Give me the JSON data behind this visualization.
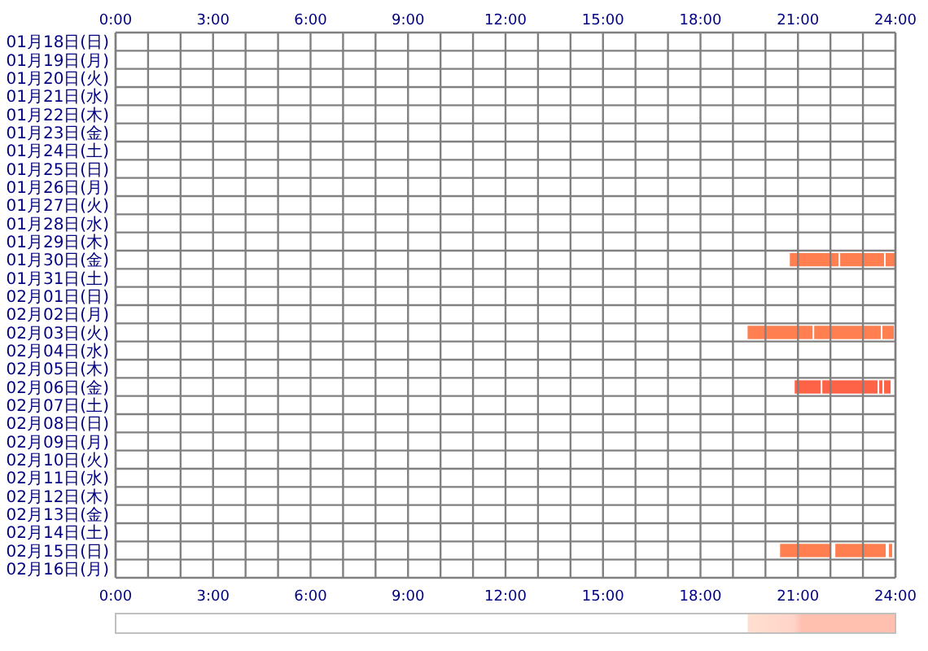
{
  "chart_data": {
    "type": "bar",
    "orientation": "horizontal",
    "grid": true,
    "categories": [
      "01月18日(日)",
      "01月19日(月)",
      "01月20日(火)",
      "01月21日(水)",
      "01月22日(木)",
      "01月23日(金)",
      "01月24日(土)",
      "01月25日(日)",
      "01月26日(月)",
      "01月27日(火)",
      "01月28日(水)",
      "01月29日(木)",
      "01月30日(金)",
      "01月31日(土)",
      "02月01日(日)",
      "02月02日(月)",
      "02月03日(火)",
      "02月04日(水)",
      "02月05日(木)",
      "02月06日(金)",
      "02月07日(土)",
      "02月08日(日)",
      "02月09日(月)",
      "02月10日(火)",
      "02月11日(水)",
      "02月12日(木)",
      "02月13日(金)",
      "02月14日(土)",
      "02月15日(日)",
      "02月16日(月)"
    ],
    "xlim": [
      0,
      24
    ],
    "xticks": [
      {
        "value": 0,
        "label": "0:00"
      },
      {
        "value": 1,
        "label": null
      },
      {
        "value": 2,
        "label": null
      },
      {
        "value": 3,
        "label": "3:00"
      },
      {
        "value": 4,
        "label": null
      },
      {
        "value": 5,
        "label": null
      },
      {
        "value": 6,
        "label": "6:00"
      },
      {
        "value": 7,
        "label": null
      },
      {
        "value": 8,
        "label": null
      },
      {
        "value": 9,
        "label": "9:00"
      },
      {
        "value": 10,
        "label": null
      },
      {
        "value": 11,
        "label": null
      },
      {
        "value": 12,
        "label": "12:00"
      },
      {
        "value": 13,
        "label": null
      },
      {
        "value": 14,
        "label": null
      },
      {
        "value": 15,
        "label": "15:00"
      },
      {
        "value": 16,
        "label": null
      },
      {
        "value": 17,
        "label": null
      },
      {
        "value": 18,
        "label": "18:00"
      },
      {
        "value": 19,
        "label": null
      },
      {
        "value": 20,
        "label": null
      },
      {
        "value": 21,
        "label": "21:00"
      },
      {
        "value": 22,
        "label": null
      },
      {
        "value": 23,
        "label": null
      },
      {
        "value": 24,
        "label": "24:00"
      }
    ],
    "x2lim": [
      0,
      24
    ],
    "x2ticks": [
      {
        "value": 0,
        "label": "0:00"
      },
      {
        "value": 3,
        "label": "3:00"
      },
      {
        "value": 6,
        "label": "6:00"
      },
      {
        "value": 9,
        "label": "9:00"
      },
      {
        "value": 12,
        "label": "12:00"
      },
      {
        "value": 15,
        "label": "15:00"
      },
      {
        "value": 18,
        "label": "18:00"
      },
      {
        "value": 21,
        "label": "21:00"
      },
      {
        "value": 24,
        "label": "24:00"
      }
    ],
    "series": [
      {
        "colors": [
          null,
          null,
          null,
          null,
          null,
          null,
          null,
          null,
          null,
          null,
          null,
          null,
          "#ff7f50",
          null,
          null,
          null,
          "#ff7f50",
          null,
          null,
          "#ff6347",
          null,
          null,
          null,
          null,
          null,
          null,
          null,
          null,
          "#ff7f50",
          null
        ],
        "base": [
          null,
          null,
          null,
          null,
          null,
          null,
          null,
          null,
          null,
          null,
          null,
          null,
          20.75,
          null,
          null,
          null,
          19.45,
          null,
          null,
          20.9,
          null,
          null,
          null,
          null,
          null,
          null,
          null,
          null,
          20.45,
          null
        ],
        "values": [
          null,
          null,
          null,
          null,
          null,
          null,
          null,
          null,
          null,
          null,
          null,
          null,
          1.5,
          null,
          null,
          null,
          2.0,
          null,
          null,
          0.8,
          null,
          null,
          null,
          null,
          null,
          null,
          null,
          null,
          1.55,
          null
        ]
      },
      {
        "colors": [
          null,
          null,
          null,
          null,
          null,
          null,
          null,
          null,
          null,
          null,
          null,
          null,
          "#ff7f50",
          null,
          null,
          null,
          "#ff7f50",
          null,
          null,
          "#ff6347",
          null,
          null,
          null,
          null,
          null,
          null,
          null,
          null,
          "#ff7f50",
          null
        ],
        "base": [
          null,
          null,
          null,
          null,
          null,
          null,
          null,
          null,
          null,
          null,
          null,
          null,
          22.3,
          null,
          null,
          null,
          21.5,
          null,
          null,
          21.75,
          null,
          null,
          null,
          null,
          null,
          null,
          null,
          null,
          22.15,
          null
        ],
        "values": [
          null,
          null,
          null,
          null,
          null,
          null,
          null,
          null,
          null,
          null,
          null,
          null,
          1.35,
          null,
          null,
          null,
          2.05,
          null,
          null,
          1.7,
          null,
          null,
          null,
          null,
          null,
          null,
          null,
          null,
          1.55,
          null
        ]
      },
      {
        "colors": [
          null,
          null,
          null,
          null,
          null,
          null,
          null,
          null,
          null,
          null,
          null,
          null,
          "#ff7f50",
          null,
          null,
          null,
          "#ff7f50",
          null,
          null,
          "#ff6347",
          null,
          null,
          null,
          null,
          null,
          null,
          null,
          null,
          "#ff7f50",
          null
        ],
        "base": [
          null,
          null,
          null,
          null,
          null,
          null,
          null,
          null,
          null,
          null,
          null,
          null,
          23.7,
          null,
          null,
          null,
          23.6,
          null,
          null,
          23.5,
          null,
          null,
          null,
          null,
          null,
          null,
          null,
          null,
          23.8,
          null
        ],
        "values": [
          null,
          null,
          null,
          null,
          null,
          null,
          null,
          null,
          null,
          null,
          null,
          null,
          0.3,
          null,
          null,
          null,
          0.35,
          null,
          null,
          0.1,
          null,
          null,
          null,
          null,
          null,
          null,
          null,
          null,
          0.1,
          null
        ]
      },
      {
        "color": "#ff6347",
        "base": [
          null,
          null,
          null,
          null,
          null,
          null,
          null,
          null,
          null,
          null,
          null,
          null,
          null,
          null,
          null,
          null,
          null,
          null,
          null,
          23.65,
          null,
          null,
          null,
          null,
          null,
          null,
          null,
          null,
          null,
          null
        ],
        "values": [
          null,
          null,
          null,
          null,
          null,
          null,
          null,
          null,
          null,
          null,
          null,
          null,
          null,
          null,
          null,
          null,
          null,
          null,
          null,
          0.2,
          null,
          null,
          null,
          null,
          null,
          null,
          null,
          null,
          null,
          null
        ]
      }
    ]
  }
}
